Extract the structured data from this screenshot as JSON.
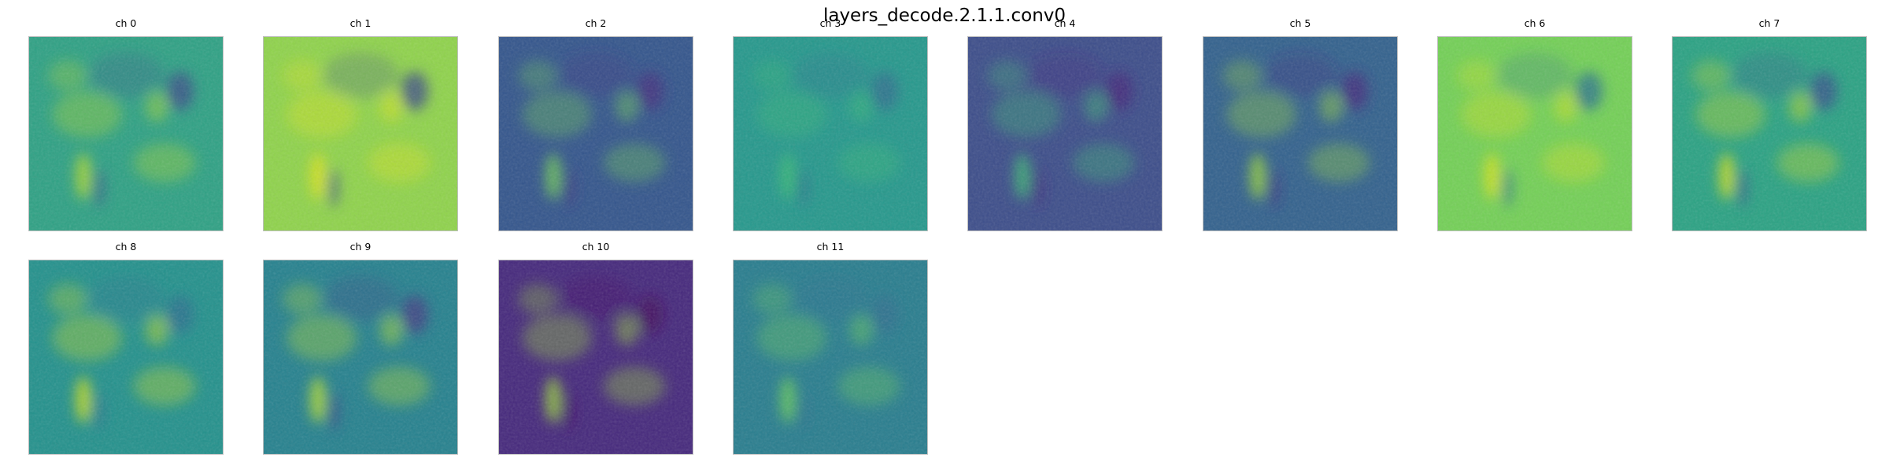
{
  "figure": {
    "title": "layers_decode.2.1.1.conv0"
  },
  "channels": [
    {
      "label": "ch 0",
      "base": "#2ea184",
      "hi": "#b6dc2d",
      "lo": "#3b4f8a"
    },
    {
      "label": "ch 1",
      "base": "#8fd34b",
      "hi": "#e2e419",
      "lo": "#3d4d8a"
    },
    {
      "label": "ch 2",
      "base": "#33558c",
      "hi": "#74cf56",
      "lo": "#46307e"
    },
    {
      "label": "ch 3",
      "base": "#25988c",
      "hi": "#3bbb75",
      "lo": "#2f6e8e"
    },
    {
      "label": "ch 4",
      "base": "#3c4d8a",
      "hi": "#3fbc73",
      "lo": "#46247a"
    },
    {
      "label": "ch 5",
      "base": "#32618d",
      "hi": "#9fda3a",
      "lo": "#46297d"
    },
    {
      "label": "ch 6",
      "base": "#73d056",
      "hi": "#dce319",
      "lo": "#2c738e"
    },
    {
      "label": "ch 7",
      "base": "#2aa283",
      "hi": "#d8e21a",
      "lo": "#3a548c"
    },
    {
      "label": "ch 8",
      "base": "#23918c",
      "hi": "#d2e21b",
      "lo": "#2d708e"
    },
    {
      "label": "ch 9",
      "base": "#25818e",
      "hi": "#bde22b",
      "lo": "#433e85"
    },
    {
      "label": "ch 10",
      "base": "#45287c",
      "hi": "#9dd93b",
      "lo": "#440a5f"
    },
    {
      "label": "ch 11",
      "base": "#287d8e",
      "hi": "#6ccd5a",
      "lo": "#2e6f8e"
    }
  ]
}
